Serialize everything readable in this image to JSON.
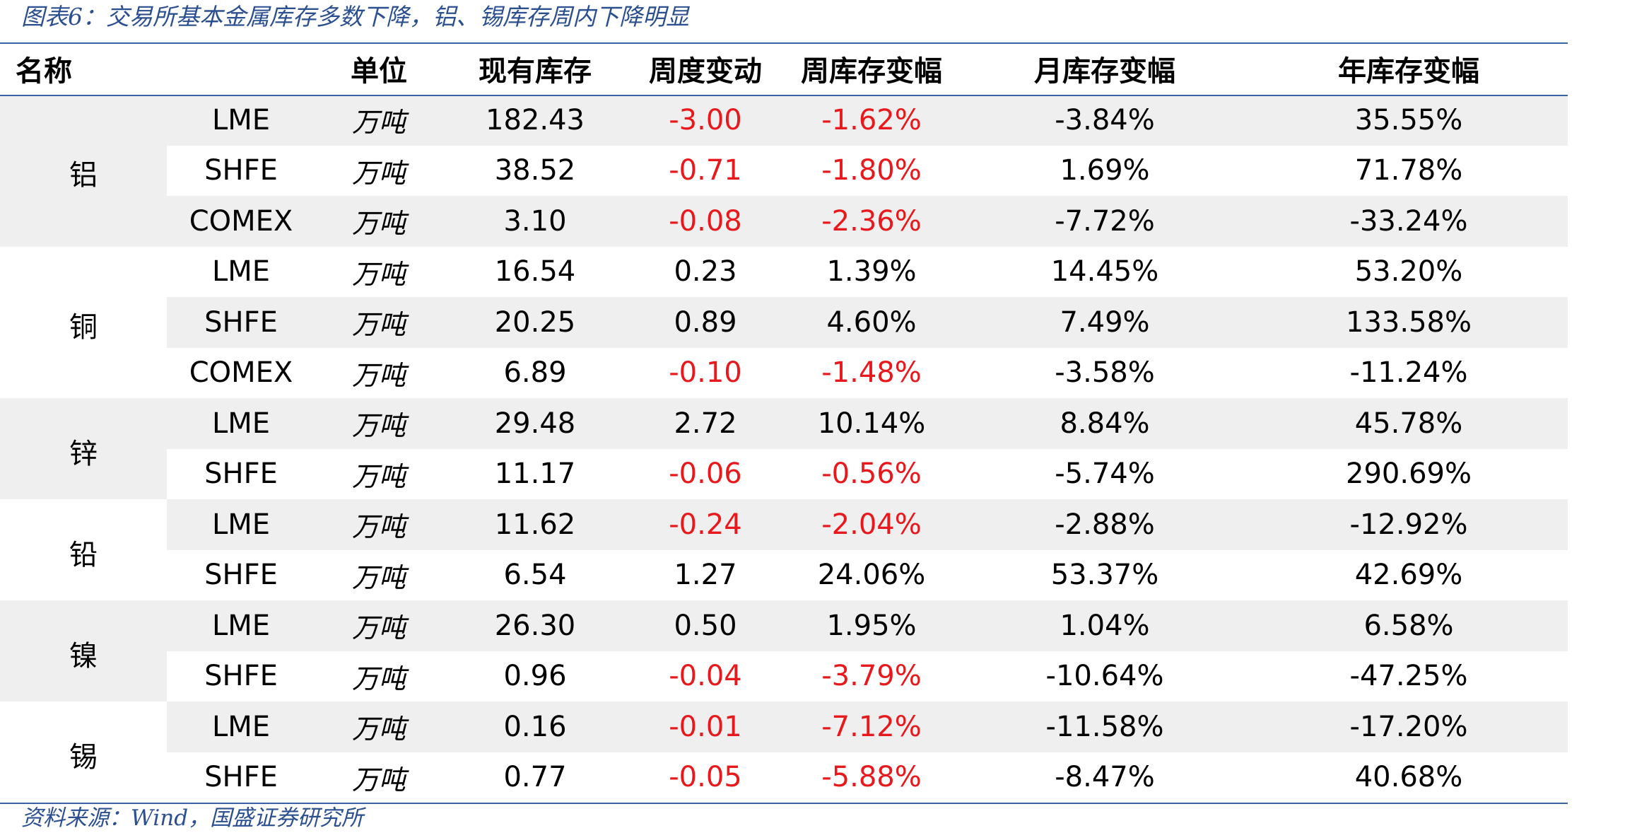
{
  "caption": "图表6：交易所基本金属库存多数下降，铝、锡库存周内下降明显",
  "headers": {
    "name": "名称",
    "unit": "单位",
    "stock": "现有库存",
    "week_change": "周度变动",
    "week_pct": "周库存变幅",
    "month_pct": "月库存变幅",
    "year_pct": "年库存变幅"
  },
  "groups": [
    {
      "metal": "铝",
      "rows": [
        {
          "exchange": "LME",
          "unit": "万吨",
          "stock": "182.43",
          "week_change": "-3.00",
          "week_pct": "-1.62%",
          "month_pct": "-3.84%",
          "year_pct": "35.55%"
        },
        {
          "exchange": "SHFE",
          "unit": "万吨",
          "stock": "38.52",
          "week_change": "-0.71",
          "week_pct": "-1.80%",
          "month_pct": "1.69%",
          "year_pct": "71.78%"
        },
        {
          "exchange": "COMEX",
          "unit": "万吨",
          "stock": "3.10",
          "week_change": "-0.08",
          "week_pct": "-2.36%",
          "month_pct": "-7.72%",
          "year_pct": "-33.24%"
        }
      ]
    },
    {
      "metal": "铜",
      "rows": [
        {
          "exchange": "LME",
          "unit": "万吨",
          "stock": "16.54",
          "week_change": "0.23",
          "week_pct": "1.39%",
          "month_pct": "14.45%",
          "year_pct": "53.20%"
        },
        {
          "exchange": "SHFE",
          "unit": "万吨",
          "stock": "20.25",
          "week_change": "0.89",
          "week_pct": "4.60%",
          "month_pct": "7.49%",
          "year_pct": "133.58%"
        },
        {
          "exchange": "COMEX",
          "unit": "万吨",
          "stock": "6.89",
          "week_change": "-0.10",
          "week_pct": "-1.48%",
          "month_pct": "-3.58%",
          "year_pct": "-11.24%"
        }
      ]
    },
    {
      "metal": "锌",
      "rows": [
        {
          "exchange": "LME",
          "unit": "万吨",
          "stock": "29.48",
          "week_change": "2.72",
          "week_pct": "10.14%",
          "month_pct": "8.84%",
          "year_pct": "45.78%"
        },
        {
          "exchange": "SHFE",
          "unit": "万吨",
          "stock": "11.17",
          "week_change": "-0.06",
          "week_pct": "-0.56%",
          "month_pct": "-5.74%",
          "year_pct": "290.69%"
        }
      ]
    },
    {
      "metal": "铅",
      "rows": [
        {
          "exchange": "LME",
          "unit": "万吨",
          "stock": "11.62",
          "week_change": "-0.24",
          "week_pct": "-2.04%",
          "month_pct": "-2.88%",
          "year_pct": "-12.92%"
        },
        {
          "exchange": "SHFE",
          "unit": "万吨",
          "stock": "6.54",
          "week_change": "1.27",
          "week_pct": "24.06%",
          "month_pct": "53.37%",
          "year_pct": "42.69%"
        }
      ]
    },
    {
      "metal": "镍",
      "rows": [
        {
          "exchange": "LME",
          "unit": "万吨",
          "stock": "26.30",
          "week_change": "0.50",
          "week_pct": "1.95%",
          "month_pct": "1.04%",
          "year_pct": "6.58%"
        },
        {
          "exchange": "SHFE",
          "unit": "万吨",
          "stock": "0.96",
          "week_change": "-0.04",
          "week_pct": "-3.79%",
          "month_pct": "-10.64%",
          "year_pct": "-47.25%"
        }
      ]
    },
    {
      "metal": "锡",
      "rows": [
        {
          "exchange": "LME",
          "unit": "万吨",
          "stock": "0.16",
          "week_change": "-0.01",
          "week_pct": "-7.12%",
          "month_pct": "-11.58%",
          "year_pct": "-17.20%"
        },
        {
          "exchange": "SHFE",
          "unit": "万吨",
          "stock": "0.77",
          "week_change": "-0.05",
          "week_pct": "-5.88%",
          "month_pct": "-8.47%",
          "year_pct": "40.68%"
        }
      ]
    }
  ],
  "source_note": "资料来源：Wind，国盛证券研究所",
  "colors": {
    "caption": "#2b4f8f",
    "rule": "#3a62a6",
    "negative": "#e8191d",
    "row_fill": "#efefef"
  }
}
